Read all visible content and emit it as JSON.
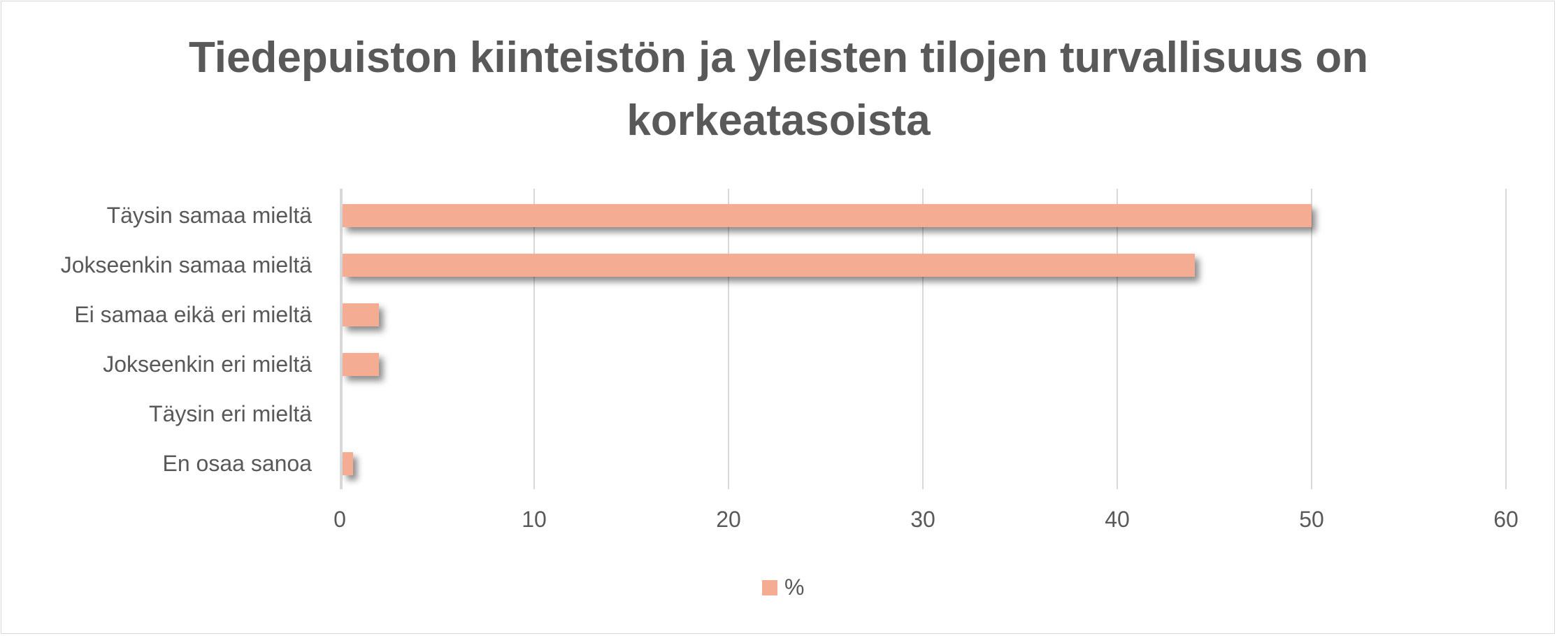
{
  "chart_data": {
    "type": "bar",
    "orientation": "horizontal",
    "title": "Tiedepuiston kiinteistön ja yleisten tilojen turvallisuus on korkeatasoista",
    "title_lines": [
      "Tiedepuiston kiinteistön ja yleisten tilojen turvallisuus on",
      "korkeatasoista"
    ],
    "categories": [
      "Täysin samaa mieltä",
      "Jokseenkin samaa mieltä",
      "Ei samaa eikä eri mieltä",
      "Jokseenkin eri mieltä",
      "Täysin eri mieltä",
      "En osaa sanoa"
    ],
    "series": [
      {
        "name": "%",
        "values": [
          50,
          44,
          2,
          2,
          0,
          0.7
        ],
        "color": "#f4ac93"
      }
    ],
    "xlabel": "",
    "ylabel": "",
    "xlim": [
      0,
      60
    ],
    "xticks": [
      "0",
      "10",
      "20",
      "30",
      "40",
      "50",
      "60"
    ],
    "grid": true,
    "legend_position": "bottom"
  }
}
